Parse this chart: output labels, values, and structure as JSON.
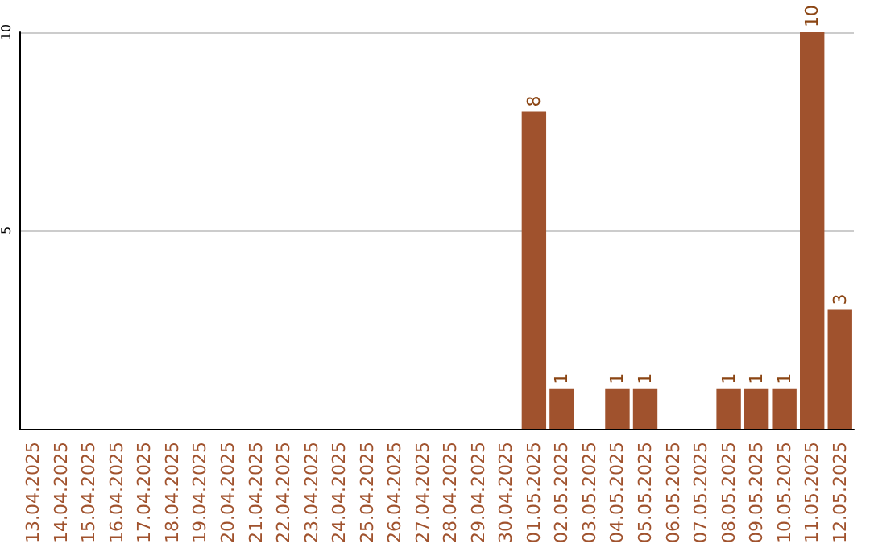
{
  "chart_data": {
    "type": "bar",
    "categories": [
      "13.04.2025",
      "14.04.2025",
      "15.04.2025",
      "16.04.2025",
      "17.04.2025",
      "18.04.2025",
      "19.04.2025",
      "20.04.2025",
      "21.04.2025",
      "22.04.2025",
      "23.04.2025",
      "24.04.2025",
      "25.04.2025",
      "26.04.2025",
      "27.04.2025",
      "28.04.2025",
      "29.04.2025",
      "30.04.2025",
      "01.05.2025",
      "02.05.2025",
      "03.05.2025",
      "04.05.2025",
      "05.05.2025",
      "06.05.2025",
      "07.05.2025",
      "08.05.2025",
      "09.05.2025",
      "10.05.2025",
      "11.05.2025",
      "12.05.2025"
    ],
    "values": [
      0,
      0,
      0,
      0,
      0,
      0,
      0,
      0,
      0,
      0,
      0,
      0,
      0,
      0,
      0,
      0,
      0,
      0,
      8,
      1,
      0,
      1,
      1,
      0,
      0,
      1,
      1,
      1,
      10,
      3
    ],
    "value_labels": [
      null,
      null,
      null,
      null,
      null,
      null,
      null,
      null,
      null,
      null,
      null,
      null,
      null,
      null,
      null,
      null,
      null,
      null,
      "8",
      "1",
      null,
      "1",
      "1",
      null,
      null,
      "1",
      "1",
      "1",
      "10",
      "3"
    ],
    "color": "#a0522d",
    "ylim": [
      0,
      10
    ],
    "yticks": [
      5,
      10
    ],
    "grid": "y"
  }
}
